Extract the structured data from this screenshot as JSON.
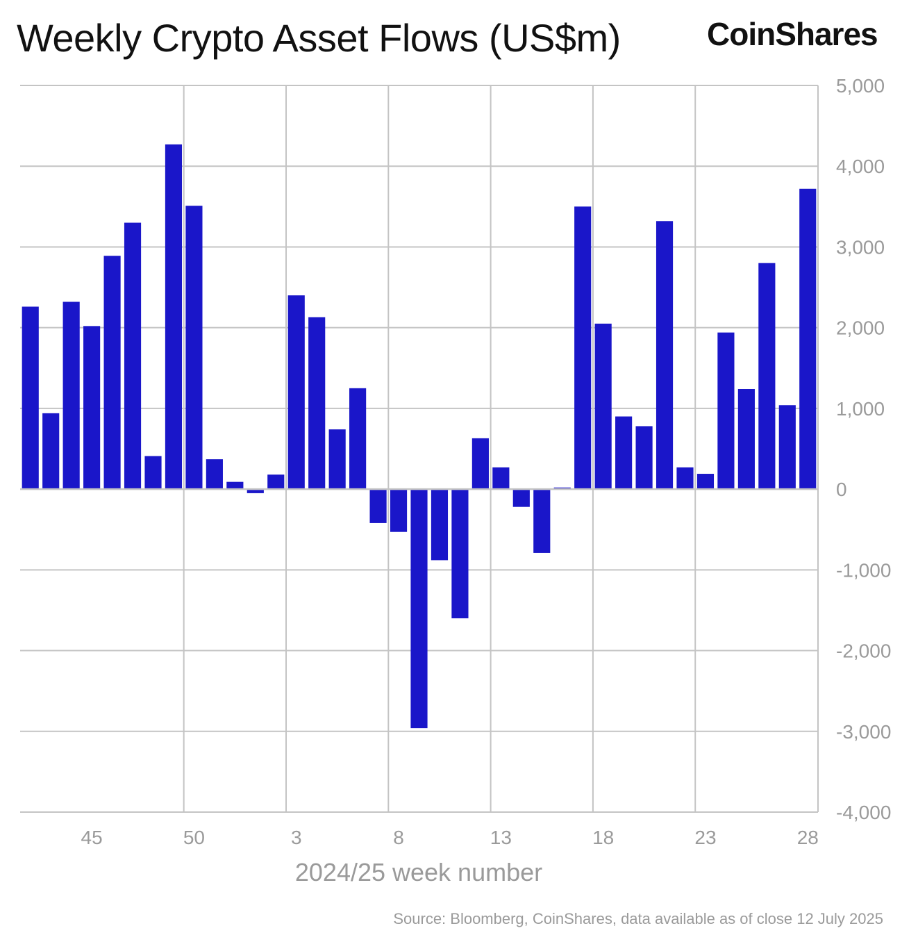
{
  "header": {
    "title": "Weekly Crypto Asset Flows (US$m)",
    "brand": "CoinShares"
  },
  "footer": {
    "source": "Source: Bloomberg, CoinShares, data available as of close 12 July 2025"
  },
  "chart_data": {
    "type": "bar",
    "title": "Weekly Crypto Asset Flows (US$m)",
    "xlabel": "2024/25 week number",
    "ylabel": "",
    "ylim": [
      -4000,
      5000
    ],
    "yticks": [
      5000,
      4000,
      3000,
      2000,
      1000,
      0,
      -1000,
      -2000,
      -3000,
      -4000
    ],
    "ytick_labels": [
      "5,000",
      "4,000",
      "3,000",
      "2,000",
      "1,000",
      "0",
      "-1,000",
      "-2,000",
      "-3,000",
      "-4,000"
    ],
    "x_tick_labels": [
      "45",
      "50",
      "3",
      "8",
      "13",
      "18",
      "23",
      "28"
    ],
    "x_tick_indices": [
      3,
      8,
      13,
      18,
      23,
      28,
      33,
      38
    ],
    "bar_color": "#1a16c9",
    "grid": true,
    "categories": [
      "42",
      "43",
      "44",
      "45",
      "46",
      "47",
      "48",
      "49",
      "50",
      "51",
      "52",
      "1",
      "2",
      "3",
      "4",
      "5",
      "6",
      "7",
      "8",
      "9",
      "10",
      "11",
      "12",
      "13",
      "14",
      "15",
      "16",
      "17",
      "18",
      "19",
      "20",
      "21",
      "22",
      "23",
      "24",
      "25",
      "26",
      "27",
      "28"
    ],
    "values": [
      2260,
      940,
      2320,
      2020,
      2890,
      3300,
      410,
      4270,
      3510,
      370,
      90,
      -50,
      180,
      2400,
      2130,
      740,
      1250,
      -420,
      -530,
      -2960,
      -880,
      -1600,
      630,
      270,
      -220,
      -790,
      20,
      3500,
      2050,
      900,
      780,
      3320,
      270,
      190,
      1940,
      1240,
      2800,
      1040,
      3720
    ]
  }
}
